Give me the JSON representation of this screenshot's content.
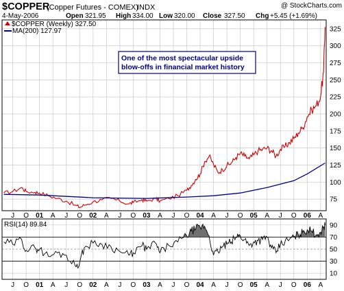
{
  "header": {
    "symbol": "$COPPER",
    "name": "(Copper Futures - COMEX)",
    "exchange": "INDX",
    "watermark": "@ StockCharts.com",
    "date": "4-May-2006",
    "open_label": "Open",
    "open": "321.95",
    "high_label": "High",
    "high": "334.00",
    "low_label": "Low",
    "low": "320.00",
    "close_label": "Close",
    "close": "327.50",
    "chg_label": "Chg",
    "chg": "+5.45 (+1.69%)"
  },
  "colors": {
    "price": "#cc0000",
    "ma": "#000080",
    "rsi_fill": "#707070",
    "grid": "#c8c8c8",
    "annotation_border": "#000080",
    "annotation_text": "#000080"
  },
  "icons": [
    "up-arrow-icon"
  ],
  "chart_data": [
    {
      "type": "line",
      "panel": "price",
      "legend": [
        {
          "label": "$COPPER (Weekly) 327.50",
          "marker": "up-arrow-icon",
          "color": "#cc0000"
        },
        {
          "label": "MA(200) 127.97",
          "color": "#000080"
        }
      ],
      "annotation": [
        "One of the most spectacular upside",
        "blow-offs in financial market history"
      ],
      "x_tick_labels": [
        "J",
        "O",
        "01",
        "A",
        "J",
        "O",
        "02",
        "A",
        "J",
        "O",
        "03",
        "A",
        "J",
        "O",
        "04",
        "A",
        "J",
        "O",
        "05",
        "A",
        "J",
        "O",
        "06",
        "A"
      ],
      "x_tick_dates": [
        "2000-07",
        "2000-10",
        "2001-01",
        "2001-04",
        "2001-07",
        "2001-10",
        "2002-01",
        "2002-04",
        "2002-07",
        "2002-10",
        "2003-01",
        "2003-04",
        "2003-07",
        "2003-10",
        "2004-01",
        "2004-04",
        "2004-07",
        "2004-10",
        "2005-01",
        "2005-04",
        "2005-07",
        "2005-10",
        "2006-01",
        "2006-04"
      ],
      "x_range": [
        "2000-05",
        "2006-05"
      ],
      "y_ticks": [
        75,
        100,
        125,
        150,
        175,
        200,
        225,
        250,
        275,
        300,
        325
      ],
      "ylim": [
        58,
        338
      ],
      "grid": true,
      "series": [
        {
          "name": "$COPPER (Weekly)",
          "x": [
            "2000-05",
            "2000-07",
            "2000-09",
            "2000-10",
            "2000-12",
            "2001-01",
            "2001-03",
            "2001-05",
            "2001-07",
            "2001-09",
            "2001-10",
            "2001-11",
            "2002-01",
            "2002-03",
            "2002-05",
            "2002-07",
            "2002-09",
            "2002-10",
            "2002-12",
            "2003-01",
            "2003-03",
            "2003-04",
            "2003-06",
            "2003-08",
            "2003-10",
            "2003-11",
            "2003-12",
            "2004-01",
            "2004-02",
            "2004-03",
            "2004-04",
            "2004-05",
            "2004-06",
            "2004-07",
            "2004-08",
            "2004-09",
            "2004-10",
            "2004-11",
            "2004-12",
            "2005-01",
            "2005-02",
            "2005-03",
            "2005-04",
            "2005-05",
            "2005-06",
            "2005-07",
            "2005-08",
            "2005-09",
            "2005-10",
            "2005-11",
            "2005-12",
            "2006-01",
            "2006-02",
            "2006-03",
            "2006-04",
            "2006-04-21",
            "2006-05"
          ],
          "values": [
            84,
            86,
            92,
            86,
            85,
            84,
            80,
            76,
            72,
            66,
            63,
            66,
            71,
            74,
            76,
            72,
            68,
            70,
            74,
            72,
            76,
            72,
            76,
            80,
            88,
            95,
            104,
            112,
            130,
            138,
            126,
            114,
            118,
            124,
            128,
            136,
            142,
            138,
            134,
            140,
            146,
            148,
            150,
            146,
            138,
            148,
            152,
            158,
            164,
            172,
            180,
            196,
            206,
            212,
            226,
            262,
            327.5
          ]
        },
        {
          "name": "MA(200)",
          "x": [
            "2000-05",
            "2001-01",
            "2002-01",
            "2003-01",
            "2003-10",
            "2004-04",
            "2004-10",
            "2005-04",
            "2005-10",
            "2006-01",
            "2006-05"
          ],
          "values": [
            82,
            81,
            77,
            76,
            78,
            80,
            84,
            92,
            102,
            112,
            127.97
          ]
        }
      ]
    },
    {
      "type": "line",
      "panel": "rsi",
      "legend": [
        {
          "label": "RSI(14) 89.84"
        }
      ],
      "y_ticks": [
        10,
        30,
        50,
        70,
        90
      ],
      "ylim": [
        0,
        100
      ],
      "overbought": 70,
      "oversold": 30,
      "midline": 50,
      "series": [
        {
          "name": "RSI(14)",
          "x": [
            "2000-05",
            "2000-07",
            "2000-09",
            "2000-10",
            "2000-12",
            "2001-01",
            "2001-03",
            "2001-05",
            "2001-07",
            "2001-09",
            "2001-10",
            "2001-11",
            "2002-01",
            "2002-03",
            "2002-05",
            "2002-07",
            "2002-09",
            "2002-10",
            "2002-12",
            "2003-01",
            "2003-03",
            "2003-04",
            "2003-06",
            "2003-08",
            "2003-10",
            "2003-11",
            "2003-12",
            "2004-01",
            "2004-02",
            "2004-03",
            "2004-04",
            "2004-05",
            "2004-06",
            "2004-07",
            "2004-08",
            "2004-09",
            "2004-10",
            "2004-11",
            "2004-12",
            "2005-01",
            "2005-02",
            "2005-03",
            "2005-04",
            "2005-05",
            "2005-06",
            "2005-07",
            "2005-08",
            "2005-09",
            "2005-10",
            "2005-11",
            "2005-12",
            "2006-01",
            "2006-02",
            "2006-03",
            "2006-04",
            "2006-04-21",
            "2006-05"
          ],
          "values": [
            62,
            58,
            66,
            48,
            52,
            50,
            38,
            44,
            40,
            22,
            28,
            52,
            60,
            58,
            54,
            46,
            40,
            44,
            56,
            50,
            60,
            44,
            56,
            62,
            72,
            80,
            84,
            86,
            88,
            72,
            40,
            46,
            54,
            58,
            62,
            70,
            72,
            66,
            56,
            62,
            64,
            66,
            70,
            52,
            44,
            58,
            62,
            66,
            70,
            74,
            78,
            82,
            80,
            74,
            78,
            86,
            89.84
          ]
        }
      ]
    }
  ]
}
